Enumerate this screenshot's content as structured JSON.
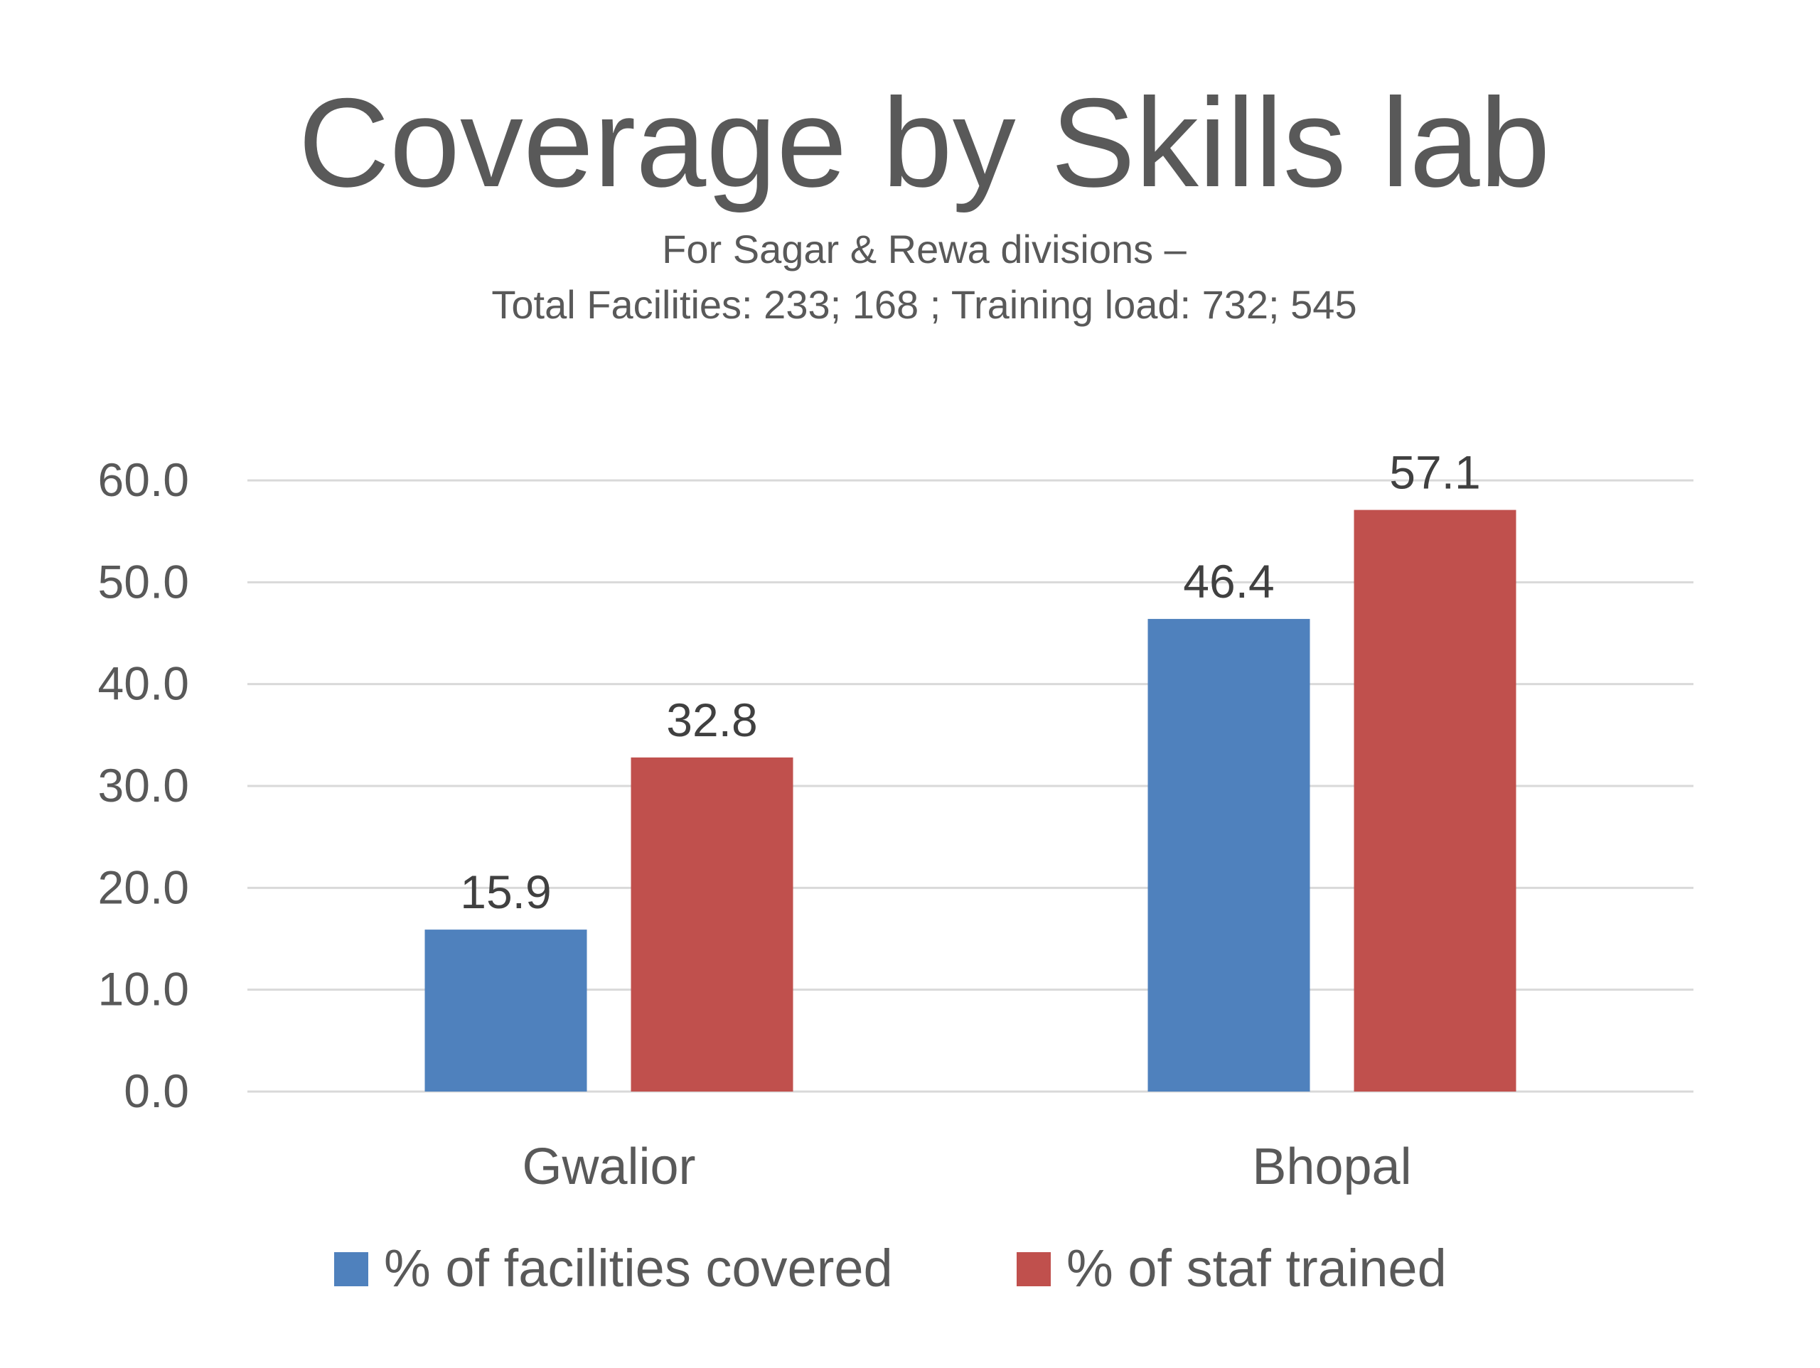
{
  "chart_data": {
    "type": "bar",
    "title": "Coverage by Skills lab",
    "subtitle_lines": [
      "For Sagar & Rewa divisions –",
      "Total Facilities: 233; 168 ; Training load: 732; 545"
    ],
    "categories": [
      "Gwalior",
      "Bhopal"
    ],
    "series": [
      {
        "name": "% of facilities covered",
        "color": "#4F81BD",
        "values": [
          15.9,
          46.4
        ],
        "labels": [
          "15.9",
          "46.4"
        ]
      },
      {
        "name": "% of staf trained",
        "color": "#C0504D",
        "values": [
          32.8,
          57.1
        ],
        "labels": [
          "32.8",
          "57.1"
        ]
      }
    ],
    "y_ticks": [
      "0.0",
      "10.0",
      "20.0",
      "30.0",
      "40.0",
      "50.0",
      "60.0"
    ],
    "ylim": [
      0,
      60
    ],
    "xlabel": "",
    "ylabel": "",
    "grid": true,
    "legend_position": "bottom"
  }
}
